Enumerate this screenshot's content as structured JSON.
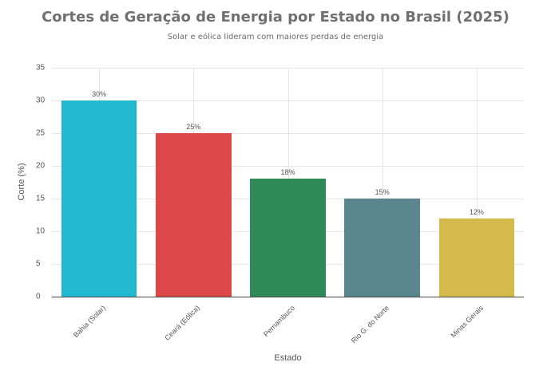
{
  "chart_data": {
    "type": "bar",
    "title": "Cortes de Geração de Energia por Estado no Brasil (2025)",
    "subtitle": "Solar e eólica lideram com maiores perdas de energia",
    "xlabel": "Estado",
    "ylabel": "Corte (%)",
    "ylim": [
      0,
      35
    ],
    "yticks": [
      0,
      5,
      10,
      15,
      20,
      25,
      30,
      35
    ],
    "grid": true,
    "categories": [
      "Bahia (Solar)",
      "Ceará (Eólica)",
      "Pernambuco",
      "Rio G. do Norte",
      "Minas Gerais"
    ],
    "values": [
      30,
      25,
      18,
      15,
      12
    ],
    "data_labels": [
      "30%",
      "25%",
      "18%",
      "15%",
      "12%"
    ],
    "colors": [
      "#22b8cf",
      "#dc4848",
      "#2e8b57",
      "#5c868d",
      "#d4ba4c"
    ]
  }
}
